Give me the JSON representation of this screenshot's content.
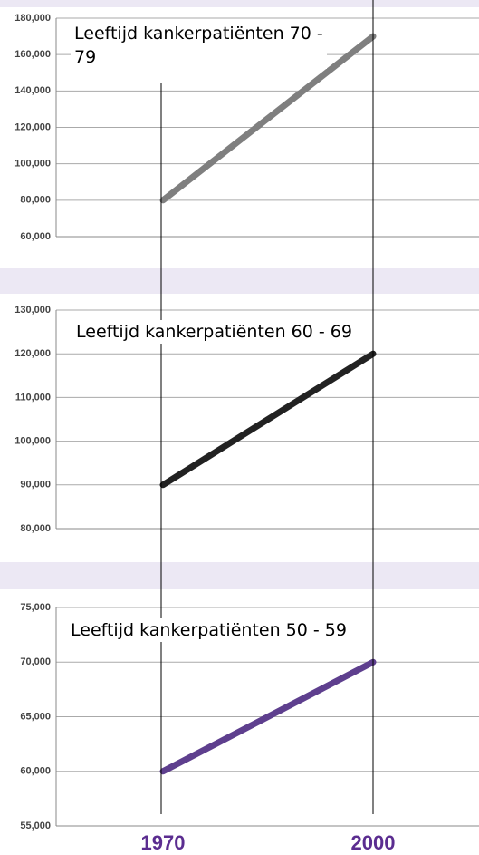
{
  "chart_data": [
    {
      "type": "line",
      "title": "Leeftijd kankerpatiënten 70 - 79",
      "series": [
        {
          "color": "#7f7f7f",
          "values": [
            80000,
            170000
          ]
        }
      ],
      "ylim": [
        60000,
        180000
      ],
      "yticks": [
        {
          "value": 60000,
          "label": "60,000"
        },
        {
          "value": 80000,
          "label": "80,000"
        },
        {
          "value": 100000,
          "label": "100,000"
        },
        {
          "value": 120000,
          "label": "120,000"
        },
        {
          "value": 140000,
          "label": "140,000"
        },
        {
          "value": 160000,
          "label": "160,000"
        },
        {
          "value": 180000,
          "label": "180,000"
        }
      ],
      "grid": true
    },
    {
      "type": "line",
      "title": "Leeftijd kankerpatiënten 60 - 69",
      "series": [
        {
          "color": "#222222",
          "values": [
            90000,
            120000
          ]
        }
      ],
      "ylim": [
        80000,
        130000
      ],
      "yticks": [
        {
          "value": 80000,
          "label": "80,000"
        },
        {
          "value": 90000,
          "label": "90,000"
        },
        {
          "value": 100000,
          "label": "100,000"
        },
        {
          "value": 110000,
          "label": "110,000"
        },
        {
          "value": 120000,
          "label": "120,000"
        },
        {
          "value": 130000,
          "label": "130,000"
        }
      ],
      "grid": true
    },
    {
      "type": "line",
      "title": "Leeftijd kankerpatiënten 50 - 59",
      "categories": [
        "1970",
        "2000"
      ],
      "series": [
        {
          "color": "#5e3f8e",
          "values": [
            60000,
            70000
          ]
        }
      ],
      "ylim": [
        55000,
        75000
      ],
      "yticks": [
        {
          "value": 55000,
          "label": "55,000"
        },
        {
          "value": 60000,
          "label": "60,000"
        },
        {
          "value": 65000,
          "label": "65,000"
        },
        {
          "value": 70000,
          "label": "70,000"
        },
        {
          "value": 75000,
          "label": "75,000"
        }
      ],
      "grid": true
    }
  ]
}
